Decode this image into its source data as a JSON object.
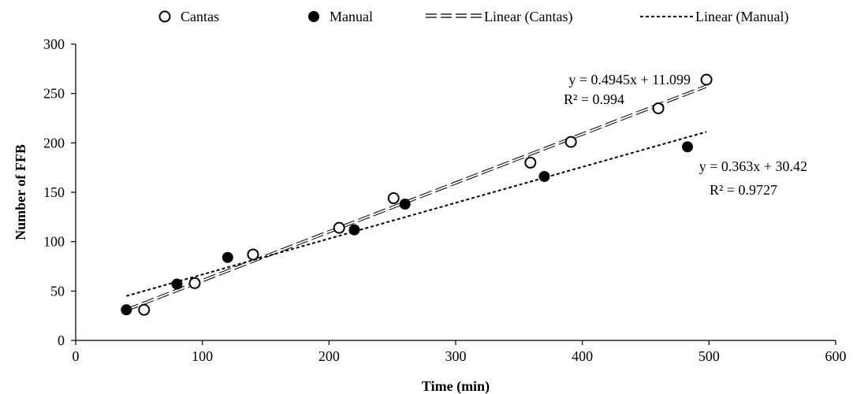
{
  "chart_data": {
    "type": "scatter",
    "xlabel": "Time (min)",
    "ylabel": "Number of FFB",
    "xlim": [
      0,
      600
    ],
    "ylim": [
      0,
      300
    ],
    "xticks": [
      0,
      100,
      200,
      300,
      400,
      500,
      600
    ],
    "yticks": [
      0,
      50,
      100,
      150,
      200,
      250,
      300
    ],
    "xtick_labels": [
      "0",
      "100",
      "200",
      "300",
      "400",
      "500",
      "600"
    ],
    "ytick_labels": [
      "0",
      "50",
      "100",
      "150",
      "200",
      "250",
      "300"
    ],
    "grid": false,
    "legend_position": "top",
    "legend": [
      {
        "label": "Cantas",
        "marker": "open-circle"
      },
      {
        "label": "Manual",
        "marker": "filled-circle"
      },
      {
        "label": "Linear (Cantas)",
        "line": "long-dash"
      },
      {
        "label": "Linear (Manual)",
        "line": "short-dash"
      }
    ],
    "series": [
      {
        "name": "Cantas",
        "marker": "open-circle",
        "points": [
          [
            54,
            31
          ],
          [
            94,
            58
          ],
          [
            140,
            87
          ],
          [
            208,
            114
          ],
          [
            251,
            144
          ],
          [
            359,
            180
          ],
          [
            391,
            201
          ],
          [
            460,
            235
          ],
          [
            498,
            264
          ]
        ]
      },
      {
        "name": "Manual",
        "marker": "filled-circle",
        "points": [
          [
            40,
            31
          ],
          [
            80,
            57
          ],
          [
            120,
            84
          ],
          [
            220,
            112
          ],
          [
            260,
            138
          ],
          [
            370,
            166
          ],
          [
            483,
            196
          ]
        ]
      }
    ],
    "trendlines": [
      {
        "name": "Linear (Cantas)",
        "style": "long-dash",
        "slope": 0.4945,
        "intercept": 11.099,
        "x_range": [
          40,
          498
        ],
        "equation": "y = 0.4945x + 11.099",
        "r2": "R² = 0.994"
      },
      {
        "name": "Linear (Manual)",
        "style": "short-dash",
        "slope": 0.363,
        "intercept": 30.42,
        "x_range": [
          40,
          498
        ],
        "equation": "y = 0.363x + 30.42",
        "r2": "R² = 0.9727"
      }
    ]
  }
}
